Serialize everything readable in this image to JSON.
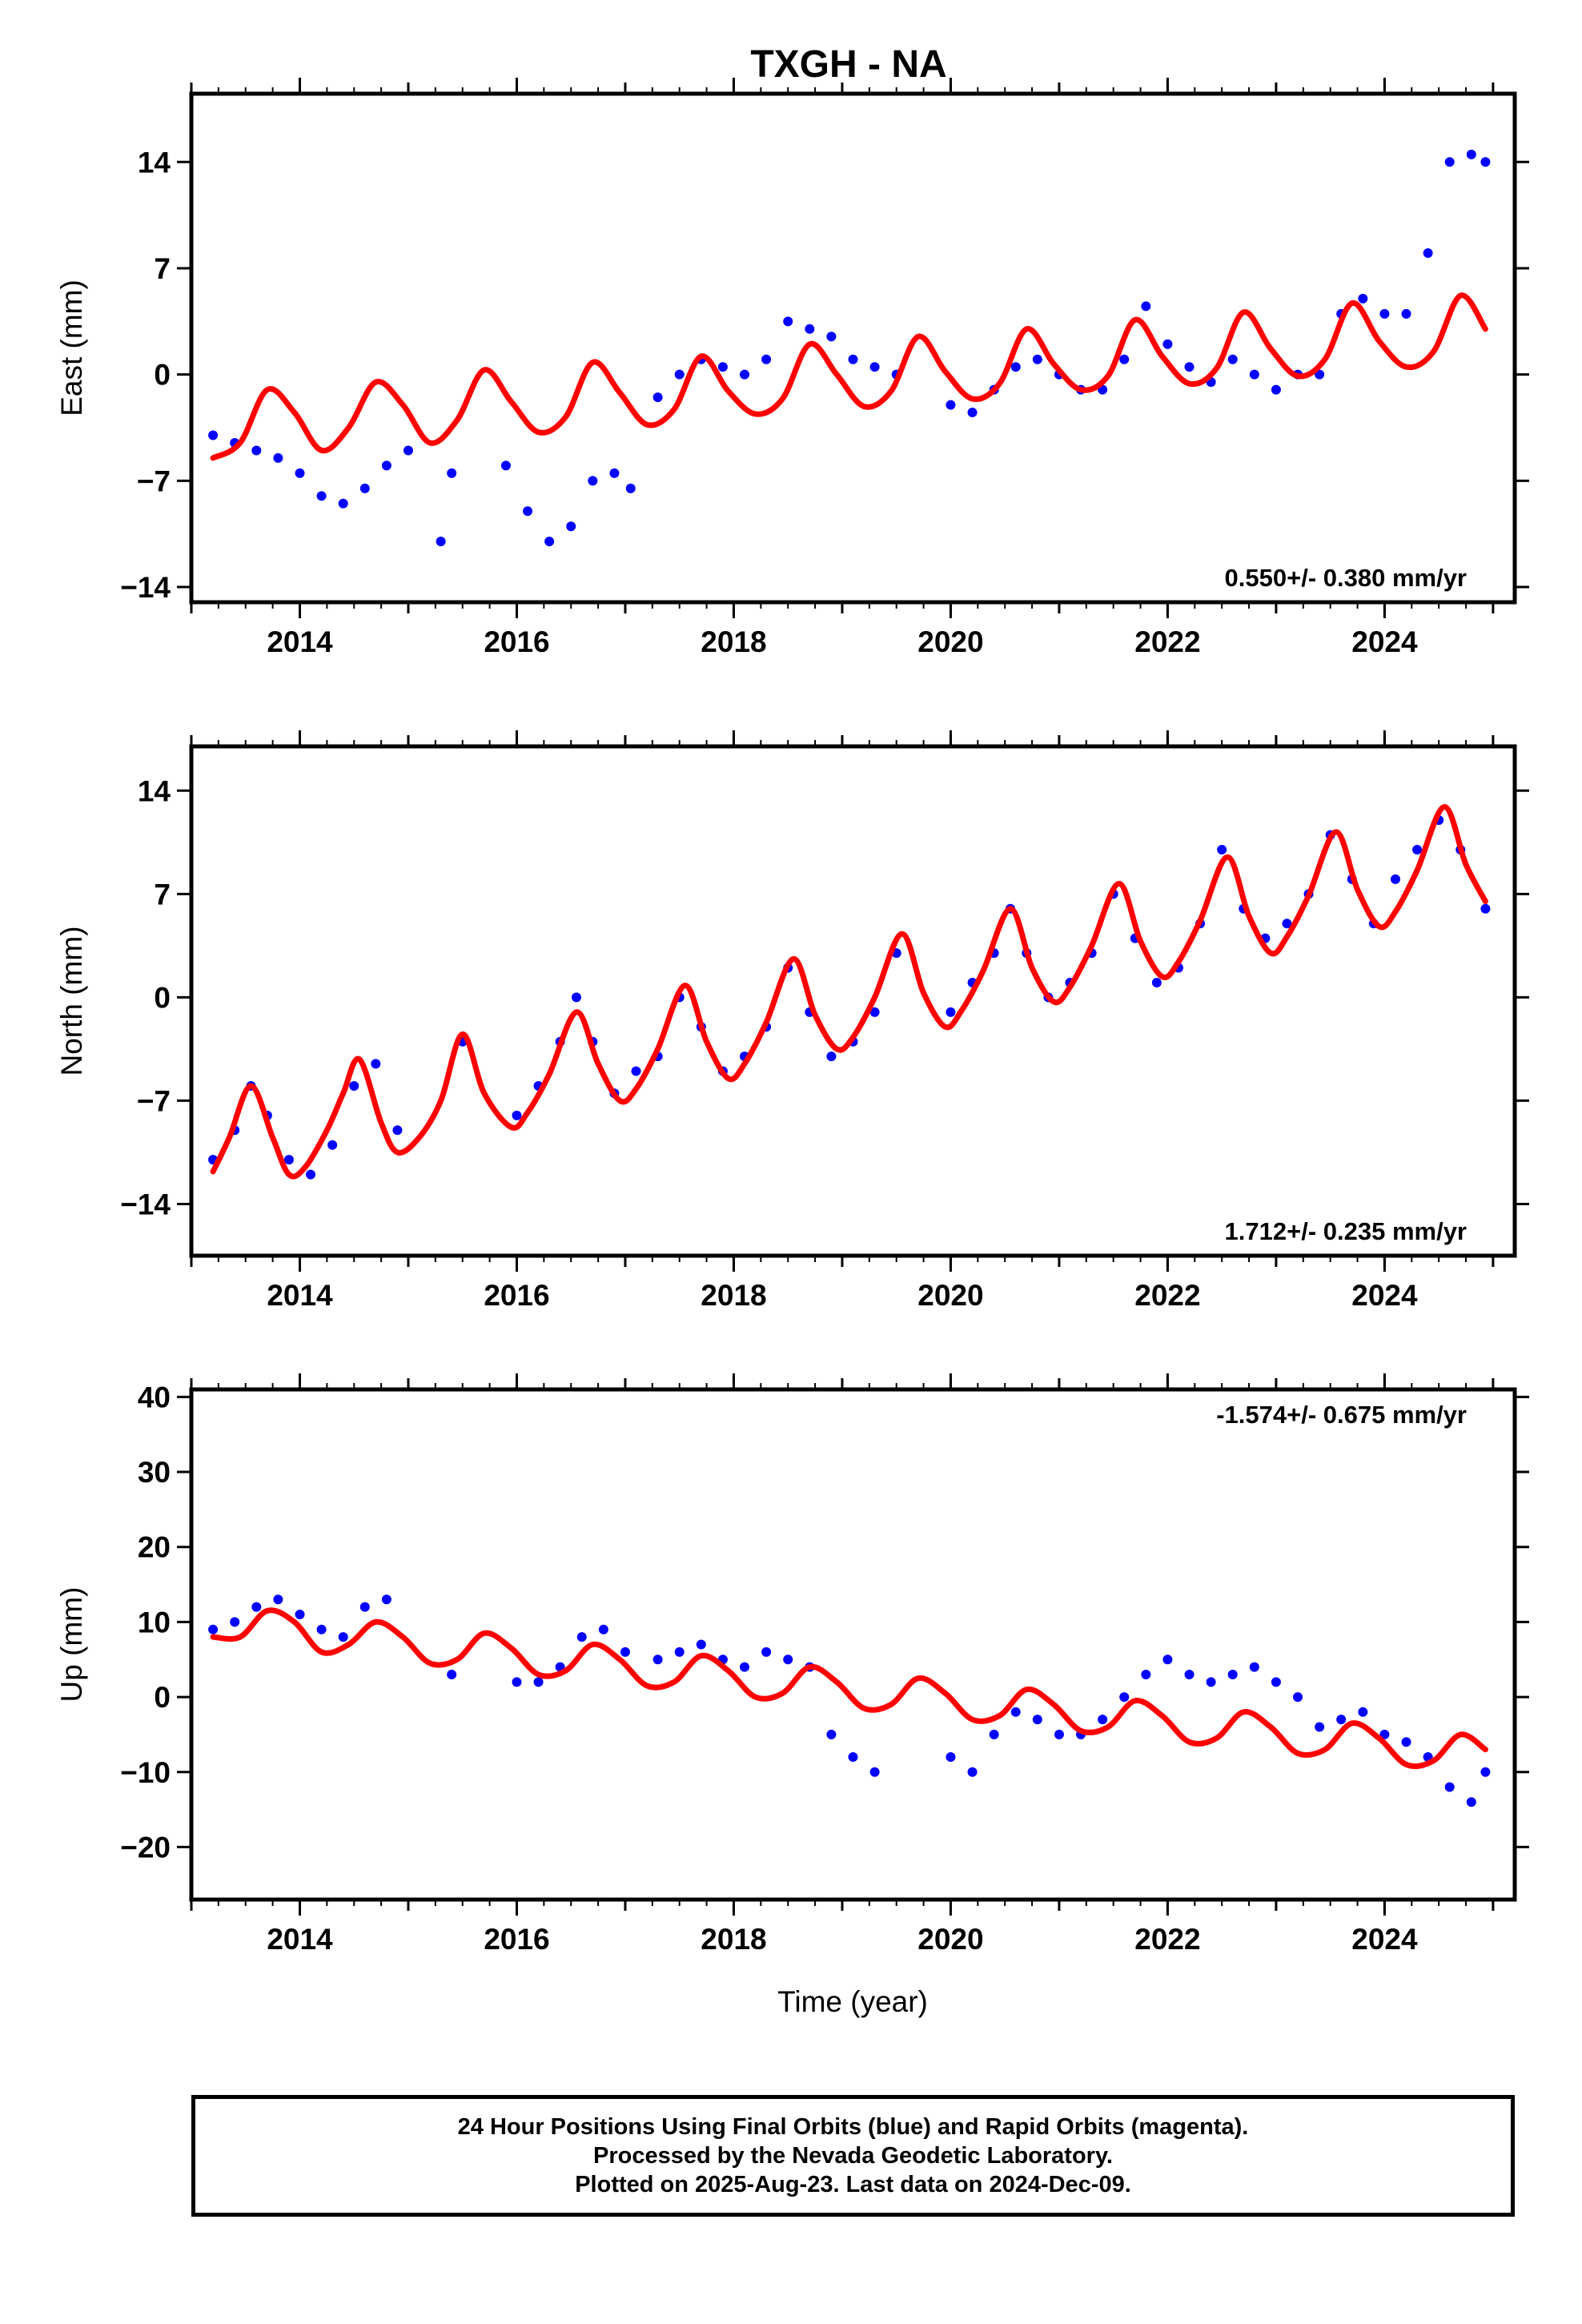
{
  "title": "TXGH - NA",
  "xlabel": "Time (year)",
  "footer": {
    "line1": "24 Hour Positions Using Final Orbits (blue) and Rapid Orbits (magenta).",
    "line2": "Processed by the Nevada Geodetic Laboratory.",
    "line3": "Plotted on 2025-Aug-23. Last data on 2024-Dec-09."
  },
  "colors": {
    "data_points": "#0000ff",
    "model_line": "#ff0000",
    "axes": "#000000"
  },
  "chart_data": [
    {
      "type": "scatter",
      "panel": "east",
      "ylabel": "East (mm)",
      "rate_label": "0.550+/- 0.380 mm/yr",
      "xlim": [
        2013.0,
        2025.2
      ],
      "ylim": [
        -15,
        18.5
      ],
      "xticks": [
        2014,
        2016,
        2018,
        2020,
        2022,
        2024
      ],
      "yticks": [
        14,
        7,
        0,
        -7,
        -14
      ],
      "grid": false,
      "series": [
        {
          "role": "data",
          "x": [
            2013.2,
            2013.4,
            2013.6,
            2013.8,
            2014.0,
            2014.2,
            2014.4,
            2014.6,
            2014.8,
            2015.0,
            2015.3,
            2015.4,
            2015.9,
            2016.1,
            2016.3,
            2016.5,
            2016.7,
            2016.9,
            2017.05,
            2017.3,
            2017.5,
            2017.7,
            2017.9,
            2018.1,
            2018.3,
            2018.5,
            2018.7,
            2018.9,
            2019.1,
            2019.3,
            2019.5,
            2020.0,
            2020.2,
            2020.4,
            2020.6,
            2020.8,
            2021.0,
            2021.2,
            2021.4,
            2021.6,
            2021.8,
            2022.0,
            2022.2,
            2022.4,
            2022.6,
            2022.8,
            2023.0,
            2023.2,
            2023.4,
            2023.6,
            2023.8,
            2024.0,
            2024.2,
            2024.4,
            2024.6,
            2024.8,
            2024.93
          ],
          "y": [
            -4,
            -4.5,
            -5,
            -5.5,
            -6.5,
            -8,
            -8.5,
            -7.5,
            -6,
            -5,
            -11,
            -6.5,
            -6,
            -9,
            -11,
            -10,
            -7,
            -6.5,
            -7.5,
            -1.5,
            0,
            1,
            0.5,
            0,
            1,
            3.5,
            3,
            2.5,
            1,
            0.5,
            0,
            -2,
            -2.5,
            -1,
            0.5,
            1,
            0,
            -1,
            -1,
            1,
            4.5,
            2,
            0.5,
            -0.5,
            1,
            0,
            -1,
            0,
            0,
            4,
            5,
            4,
            4,
            8,
            14,
            14.5,
            14
          ]
        },
        {
          "role": "model",
          "x": [
            2013.2,
            2013.45,
            2013.7,
            2013.95,
            2014.2,
            2014.45,
            2014.7,
            2014.95,
            2015.2,
            2015.45,
            2015.7,
            2015.95,
            2016.2,
            2016.45,
            2016.7,
            2016.95,
            2017.2,
            2017.45,
            2017.7,
            2017.95,
            2018.2,
            2018.45,
            2018.7,
            2018.95,
            2019.2,
            2019.45,
            2019.7,
            2019.95,
            2020.2,
            2020.45,
            2020.7,
            2020.95,
            2021.2,
            2021.45,
            2021.7,
            2021.95,
            2022.2,
            2022.45,
            2022.7,
            2022.95,
            2023.2,
            2023.45,
            2023.7,
            2023.95,
            2024.2,
            2024.45,
            2024.7,
            2024.93
          ],
          "y": [
            -5.5,
            -4.5,
            -1,
            -2.5,
            -5,
            -3.5,
            -0.5,
            -2,
            -4.5,
            -3,
            0.3,
            -1.8,
            -3.8,
            -2.8,
            0.8,
            -1.2,
            -3.3,
            -2.3,
            1.2,
            -1.1,
            -2.6,
            -1.6,
            2.0,
            0,
            -2.1,
            -1.1,
            2.5,
            0.2,
            -1.6,
            -0.6,
            3.0,
            0.7,
            -1.0,
            -0.1,
            3.6,
            1.2,
            -0.6,
            0.4,
            4.1,
            1.7,
            -0.1,
            1.0,
            4.7,
            2.2,
            0.5,
            1.5,
            5.2,
            3.0
          ]
        }
      ]
    },
    {
      "type": "scatter",
      "panel": "north",
      "ylabel": "North (mm)",
      "rate_label": "1.712+/- 0.235 mm/yr",
      "xlim": [
        2013.0,
        2025.2
      ],
      "ylim": [
        -17.5,
        17
      ],
      "xticks": [
        2014,
        2016,
        2018,
        2020,
        2022,
        2024
      ],
      "yticks": [
        14,
        7,
        0,
        -7,
        -14
      ],
      "grid": false,
      "series": [
        {
          "role": "data",
          "x": [
            2013.2,
            2013.4,
            2013.55,
            2013.7,
            2013.9,
            2014.1,
            2014.3,
            2014.5,
            2014.7,
            2014.9,
            2015.5,
            2016.0,
            2016.2,
            2016.4,
            2016.55,
            2016.7,
            2016.9,
            2017.1,
            2017.3,
            2017.5,
            2017.7,
            2017.9,
            2018.1,
            2018.3,
            2018.5,
            2018.7,
            2018.9,
            2019.1,
            2019.3,
            2019.5,
            2020.0,
            2020.2,
            2020.4,
            2020.55,
            2020.7,
            2020.9,
            2021.1,
            2021.3,
            2021.5,
            2021.7,
            2021.9,
            2022.1,
            2022.3,
            2022.5,
            2022.7,
            2022.9,
            2023.1,
            2023.3,
            2023.5,
            2023.7,
            2023.9,
            2024.1,
            2024.3,
            2024.5,
            2024.7,
            2024.93
          ],
          "y": [
            -11,
            -9,
            -6,
            -8,
            -11,
            -12,
            -10,
            -6,
            -4.5,
            -9,
            -3,
            -8,
            -6,
            -3,
            0,
            -3,
            -6.5,
            -5,
            -4,
            0,
            -2,
            -5,
            -4,
            -2,
            2,
            -1,
            -4,
            -3,
            -1,
            3,
            -1,
            1,
            3,
            6,
            3,
            0,
            1,
            3,
            7,
            4,
            1,
            2,
            5,
            10,
            6,
            4,
            5,
            7,
            11,
            8,
            5,
            8,
            10,
            12,
            10,
            6
          ]
        },
        {
          "role": "model",
          "x": [
            2013.2,
            2013.35,
            2013.55,
            2013.75,
            2013.9,
            2014.05,
            2014.25,
            2014.4,
            2014.55,
            2014.75,
            2014.9,
            2015.1,
            2015.3,
            2015.5,
            2015.7,
            2015.95,
            2016.1,
            2016.3,
            2016.55,
            2016.75,
            2016.95,
            2017.1,
            2017.3,
            2017.55,
            2017.75,
            2017.95,
            2018.1,
            2018.3,
            2018.55,
            2018.75,
            2018.95,
            2019.1,
            2019.3,
            2019.55,
            2019.75,
            2019.95,
            2020.1,
            2020.3,
            2020.55,
            2020.75,
            2020.95,
            2021.1,
            2021.3,
            2021.55,
            2021.75,
            2021.95,
            2022.1,
            2022.3,
            2022.55,
            2022.75,
            2022.95,
            2023.1,
            2023.3,
            2023.55,
            2023.75,
            2023.95,
            2024.1,
            2024.3,
            2024.55,
            2024.75,
            2024.93
          ],
          "y": [
            -11.8,
            -9.5,
            -6,
            -9.5,
            -12,
            -11.5,
            -9,
            -6.5,
            -4.2,
            -8.5,
            -10.5,
            -9.5,
            -7,
            -2.5,
            -6.5,
            -8.8,
            -7.8,
            -5.2,
            -1,
            -4.5,
            -7.0,
            -6.2,
            -3.5,
            0.8,
            -3,
            -5.5,
            -4.5,
            -1.7,
            2.6,
            -1.2,
            -3.5,
            -2.7,
            0,
            4.3,
            0.3,
            -2.0,
            -0.9,
            1.8,
            6.0,
            2.0,
            -0.3,
            0.7,
            3.5,
            7.7,
            3.8,
            1.4,
            2.4,
            5.2,
            9.5,
            5.5,
            3.0,
            4.1,
            6.9,
            11.2,
            7.3,
            4.8,
            5.8,
            8.6,
            12.9,
            9.0,
            6.5
          ]
        }
      ]
    },
    {
      "type": "scatter",
      "panel": "up",
      "ylabel": "Up (mm)",
      "rate_label": "-1.574+/- 0.675 mm/yr",
      "xlim": [
        2013.0,
        2025.2
      ],
      "ylim": [
        -27,
        41
      ],
      "xticks": [
        2014,
        2016,
        2018,
        2020,
        2022,
        2024
      ],
      "yticks": [
        40,
        30,
        20,
        10,
        0,
        -10,
        -20
      ],
      "grid": false,
      "series": [
        {
          "role": "data",
          "x": [
            2013.2,
            2013.4,
            2013.6,
            2013.8,
            2014.0,
            2014.2,
            2014.4,
            2014.6,
            2014.8,
            2015.4,
            2016.0,
            2016.2,
            2016.4,
            2016.6,
            2016.8,
            2017.0,
            2017.3,
            2017.5,
            2017.7,
            2017.9,
            2018.1,
            2018.3,
            2018.5,
            2018.7,
            2018.9,
            2019.1,
            2019.3,
            2020.0,
            2020.2,
            2020.4,
            2020.6,
            2020.8,
            2021.0,
            2021.2,
            2021.4,
            2021.6,
            2021.8,
            2022.0,
            2022.2,
            2022.4,
            2022.6,
            2022.8,
            2023.0,
            2023.2,
            2023.4,
            2023.6,
            2023.8,
            2024.0,
            2024.2,
            2024.4,
            2024.6,
            2024.8,
            2024.93
          ],
          "y": [
            9,
            10,
            12,
            13,
            11,
            9,
            8,
            12,
            13,
            3,
            2,
            2,
            4,
            8,
            9,
            6,
            5,
            6,
            7,
            5,
            4,
            6,
            5,
            4,
            -5,
            -8,
            -10,
            -8,
            -10,
            -5,
            -2,
            -3,
            -5,
            -5,
            -3,
            0,
            3,
            5,
            3,
            2,
            3,
            4,
            2,
            0,
            -4,
            -3,
            -2,
            -5,
            -6,
            -8,
            -12,
            -14,
            -10
          ]
        },
        {
          "role": "model",
          "x": [
            2013.2,
            2013.45,
            2013.7,
            2013.95,
            2014.2,
            2014.45,
            2014.7,
            2014.95,
            2015.2,
            2015.45,
            2015.7,
            2015.95,
            2016.2,
            2016.45,
            2016.7,
            2016.95,
            2017.2,
            2017.45,
            2017.7,
            2017.95,
            2018.2,
            2018.45,
            2018.7,
            2018.95,
            2019.2,
            2019.45,
            2019.7,
            2019.95,
            2020.2,
            2020.45,
            2020.7,
            2020.95,
            2021.2,
            2021.45,
            2021.7,
            2021.95,
            2022.2,
            2022.45,
            2022.7,
            2022.95,
            2023.2,
            2023.45,
            2023.7,
            2023.95,
            2024.2,
            2024.45,
            2024.7,
            2024.93
          ],
          "y": [
            8,
            8,
            11.5,
            10,
            6,
            7,
            10,
            8,
            4.5,
            5,
            8.5,
            6.5,
            3,
            3.5,
            7,
            5,
            1.5,
            2,
            5.5,
            3.5,
            0,
            0.5,
            4,
            2,
            -1.5,
            -1,
            2.5,
            0.5,
            -3,
            -2.5,
            1,
            -1,
            -4.5,
            -4,
            -0.5,
            -2.5,
            -6,
            -5.5,
            -2,
            -4,
            -7.5,
            -7,
            -3.5,
            -5.5,
            -9,
            -8.5,
            -5,
            -7
          ]
        }
      ]
    }
  ]
}
